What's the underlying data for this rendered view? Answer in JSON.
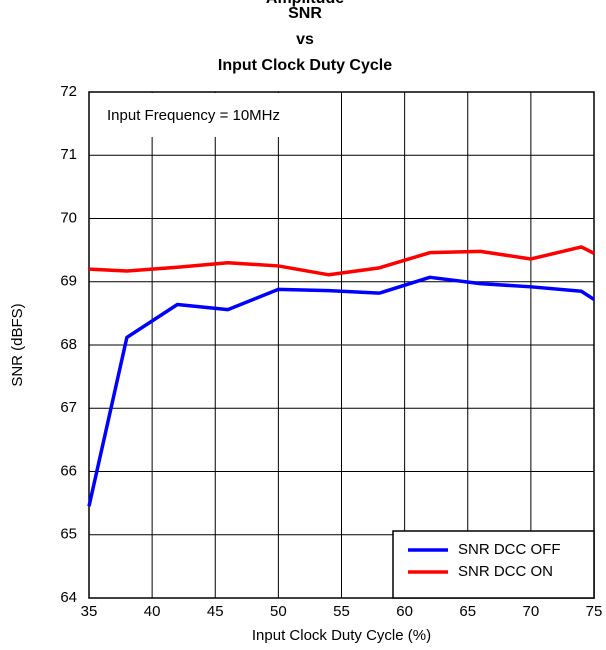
{
  "chart_data": {
    "type": "line",
    "title": [
      "Amplitude",
      "SNR",
      "vs",
      "Input Clock Duty Cycle"
    ],
    "xlabel": "Input Clock Duty Cycle (%)",
    "ylabel": "SNR (dBFS)",
    "annotation": "Input Frequency = 10MHz",
    "x": [
      35,
      38,
      42,
      46,
      50,
      54,
      58,
      62,
      66,
      70,
      74,
      75
    ],
    "series": [
      {
        "name": "SNR DCC OFF",
        "color": "#0000ff",
        "values": [
          65.45,
          68.12,
          68.64,
          68.56,
          68.88,
          68.86,
          68.82,
          69.07,
          68.97,
          68.92,
          68.85,
          68.72
        ]
      },
      {
        "name": "SNR DCC ON",
        "color": "#ff0000",
        "values": [
          69.2,
          69.17,
          69.23,
          69.3,
          69.25,
          69.11,
          69.22,
          69.46,
          69.48,
          69.36,
          69.55,
          69.45
        ]
      }
    ],
    "xlim": [
      35,
      75
    ],
    "xticks": [
      35,
      40,
      45,
      50,
      55,
      60,
      65,
      70,
      75
    ],
    "ylim": [
      64,
      72
    ],
    "yticks": [
      64,
      65,
      66,
      67,
      68,
      69,
      70,
      71,
      72
    ],
    "grid": true,
    "legend": "lower right"
  }
}
